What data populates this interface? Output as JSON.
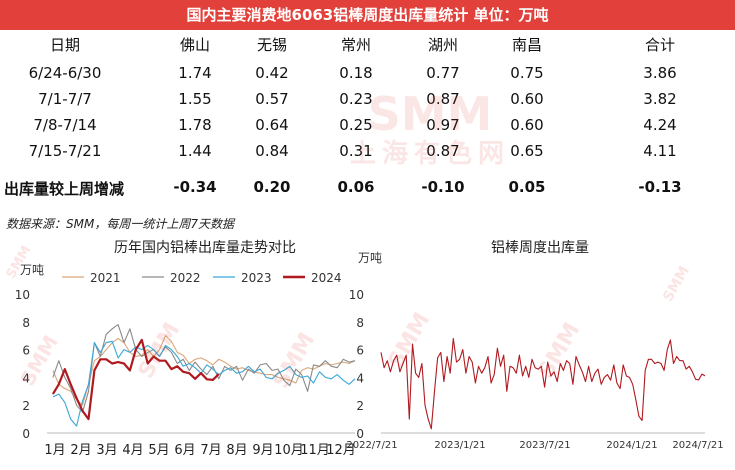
{
  "banner": {
    "title": "国内主要消费地6063铝棒周度出库量统计 单位：万吨"
  },
  "table": {
    "headers": [
      "日期",
      "佛山",
      "无锡",
      "常州",
      "湖州",
      "南昌",
      "合计"
    ],
    "rows": [
      [
        "6/24-6/30",
        "1.74",
        "0.42",
        "0.18",
        "0.77",
        "0.75",
        "3.86"
      ],
      [
        "7/1-7/7",
        "1.55",
        "0.57",
        "0.23",
        "0.87",
        "0.60",
        "3.82"
      ],
      [
        "7/8-7/14",
        "1.78",
        "0.64",
        "0.25",
        "0.97",
        "0.60",
        "4.24"
      ],
      [
        "7/15-7/21",
        "1.44",
        "0.84",
        "0.31",
        "0.87",
        "0.65",
        "4.11"
      ]
    ],
    "change_row": [
      "出库量较上周增减",
      "-0.34",
      "0.20",
      "0.06",
      "-0.10",
      "0.05",
      "-0.13"
    ]
  },
  "source_note": "数据来源：SMM，每周一统计上周7天数据",
  "watermark": {
    "brand": "SMM",
    "cn": "上海有色网"
  },
  "colors": {
    "banner": "#e2403a",
    "s2021": "#d9a77a",
    "s2022": "#8a8a8a",
    "s2023": "#3aa7d6",
    "s2024": "#b0191e",
    "right_line": "#b0191e"
  },
  "chart_data": [
    {
      "type": "line",
      "title": "历年国内铝棒出库量走势对比",
      "ylabel": "万吨",
      "ylim": [
        0,
        10
      ],
      "yticks": [
        "0",
        "2",
        "4",
        "6",
        "8",
        "10"
      ],
      "categories": [
        "1月",
        "2月",
        "3月",
        "4月",
        "5月",
        "6月",
        "7月",
        "8月",
        "9月",
        "10月",
        "11月",
        "12月"
      ],
      "legend_position": "top",
      "x_range": [
        0,
        52
      ],
      "series": [
        {
          "name": "2021",
          "color": "#d9a77a",
          "x": [
            1,
            2,
            3,
            4,
            5,
            6,
            7,
            8,
            9,
            10,
            11,
            12,
            13,
            14,
            15,
            16,
            17,
            18,
            19,
            20,
            21,
            22,
            23,
            24,
            25,
            26,
            27,
            28,
            29,
            30,
            31,
            32,
            33,
            34,
            35,
            36,
            37,
            38,
            39,
            40,
            41,
            42,
            43,
            44,
            45,
            46,
            47,
            48,
            49,
            50,
            51,
            52
          ],
          "y": [
            4.5,
            3.5,
            3.2,
            3.0,
            2.4,
            2.0,
            3.5,
            5.2,
            5.5,
            6.0,
            6.5,
            6.8,
            6.5,
            5.8,
            5.5,
            5.6,
            6.0,
            5.5,
            6.0,
            7.0,
            6.6,
            5.8,
            5.6,
            5.0,
            5.3,
            5.4,
            5.2,
            4.9,
            5.3,
            5.1,
            4.8,
            4.6,
            4.7,
            4.5,
            4.4,
            4.3,
            4.2,
            4.2,
            4.0,
            3.9,
            3.8,
            3.6,
            4.5,
            4.7,
            4.6,
            4.8,
            5.0,
            4.9,
            5.0,
            5.1,
            5.0,
            5.2
          ]
        },
        {
          "name": "2022",
          "color": "#8a8a8a",
          "x": [
            1,
            2,
            3,
            4,
            5,
            6,
            7,
            8,
            9,
            10,
            11,
            12,
            13,
            14,
            15,
            16,
            17,
            18,
            19,
            20,
            21,
            22,
            23,
            24,
            25,
            26,
            27,
            28,
            29,
            30,
            31,
            32,
            33,
            34,
            35,
            36,
            37,
            38,
            39,
            40,
            41,
            42,
            43,
            44,
            45,
            46,
            47,
            48,
            49,
            50,
            51,
            52
          ],
          "y": [
            4.0,
            5.2,
            4.0,
            3.2,
            2.0,
            1.5,
            3.0,
            6.5,
            5.5,
            7.1,
            7.5,
            7.8,
            6.5,
            7.5,
            6.0,
            5.5,
            5.8,
            6.0,
            5.5,
            6.2,
            5.8,
            5.0,
            5.3,
            4.5,
            5.1,
            4.6,
            4.2,
            4.8,
            3.9,
            4.8,
            4.5,
            4.8,
            3.8,
            4.6,
            4.3,
            4.9,
            5.0,
            4.5,
            4.6,
            3.8,
            3.4,
            4.6,
            4.2,
            3.0,
            4.9,
            4.8,
            5.2,
            4.8,
            4.7,
            5.3,
            5.1,
            5.2
          ]
        },
        {
          "name": "2023",
          "color": "#3aa7d6",
          "x": [
            1,
            2,
            3,
            4,
            5,
            6,
            7,
            8,
            9,
            10,
            11,
            12,
            13,
            14,
            15,
            16,
            17,
            18,
            19,
            20,
            21,
            22,
            23,
            24,
            25,
            26,
            27,
            28,
            29,
            30,
            31,
            32,
            33,
            34,
            35,
            36,
            37,
            38,
            39,
            40,
            41,
            42,
            43,
            44,
            45,
            46,
            47,
            48,
            49,
            50,
            51,
            52
          ],
          "y": [
            2.6,
            2.8,
            2.2,
            1.0,
            0.5,
            2.3,
            3.5,
            6.5,
            5.8,
            6.5,
            6.6,
            5.4,
            6.0,
            5.8,
            6.2,
            6.0,
            6.3,
            6.0,
            5.5,
            6.3,
            6.0,
            5.5,
            4.8,
            5.0,
            4.7,
            4.3,
            4.9,
            4.6,
            4.2,
            4.5,
            4.7,
            4.3,
            4.4,
            4.8,
            4.4,
            4.6,
            4.0,
            3.9,
            4.3,
            4.5,
            4.8,
            4.2,
            4.0,
            4.1,
            3.6,
            4.4,
            4.0,
            3.9,
            4.2,
            3.8,
            3.5,
            3.9
          ]
        },
        {
          "name": "2024",
          "color": "#b0191e",
          "x": [
            1,
            2,
            3,
            4,
            5,
            6,
            7,
            8,
            9,
            10,
            11,
            12,
            13,
            14,
            15,
            16,
            17,
            18,
            19,
            20,
            21,
            22,
            23,
            24,
            25,
            26,
            27,
            28,
            29
          ],
          "y": [
            2.8,
            3.5,
            4.6,
            3.5,
            2.5,
            1.6,
            1.0,
            4.5,
            5.3,
            5.3,
            5.0,
            5.1,
            5.0,
            4.5,
            6.0,
            6.7,
            5.0,
            5.5,
            5.2,
            5.2,
            4.6,
            4.8,
            4.4,
            4.3,
            3.9,
            4.3,
            3.86,
            3.82,
            4.24
          ]
        }
      ]
    },
    {
      "type": "line",
      "title": "铝棒周度出库量",
      "ylabel": "万吨",
      "ylim": [
        0,
        10
      ],
      "yticks": [
        "0",
        "2",
        "4",
        "6",
        "8",
        "10"
      ],
      "xticks": [
        "2022/7/21",
        "2023/1/21",
        "2023/7/21",
        "2024/1/21",
        "2024/7/21"
      ],
      "x_range": [
        0,
        104
      ],
      "series": [
        {
          "color": "#b0191e",
          "y": [
            5.8,
            4.7,
            5.2,
            4.4,
            5.2,
            5.6,
            4.4,
            5.0,
            5.6,
            1.0,
            6.4,
            4.3,
            4.0,
            5.0,
            2.0,
            1.0,
            0.3,
            3.0,
            5.4,
            5.8,
            3.7,
            5.5,
            4.3,
            6.8,
            5.1,
            5.3,
            6.0,
            4.3,
            5.5,
            5.1,
            3.6,
            4.8,
            4.3,
            4.7,
            5.5,
            3.6,
            4.2,
            6.1,
            4.8,
            5.6,
            3.0,
            4.8,
            4.7,
            4.3,
            5.6,
            4.1,
            4.8,
            4.0,
            5.3,
            4.7,
            4.6,
            4.8,
            3.3,
            5.1,
            4.1,
            4.4,
            3.7,
            5.0,
            4.5,
            5.2,
            5.0,
            3.5,
            5.5,
            4.9,
            4.4,
            3.7,
            4.8,
            3.7,
            4.3,
            4.6,
            3.5,
            4.0,
            4.2,
            3.8,
            4.9,
            3.6,
            3.2,
            4.9,
            4.1,
            4.0,
            3.5,
            2.4,
            1.2,
            0.9,
            4.5,
            5.3,
            5.3,
            5.0,
            5.1,
            5.0,
            4.5,
            6.0,
            6.7,
            5.0,
            5.5,
            5.2,
            5.2,
            4.6,
            4.8,
            4.4,
            3.86,
            3.82,
            4.24,
            4.11
          ]
        }
      ]
    }
  ]
}
